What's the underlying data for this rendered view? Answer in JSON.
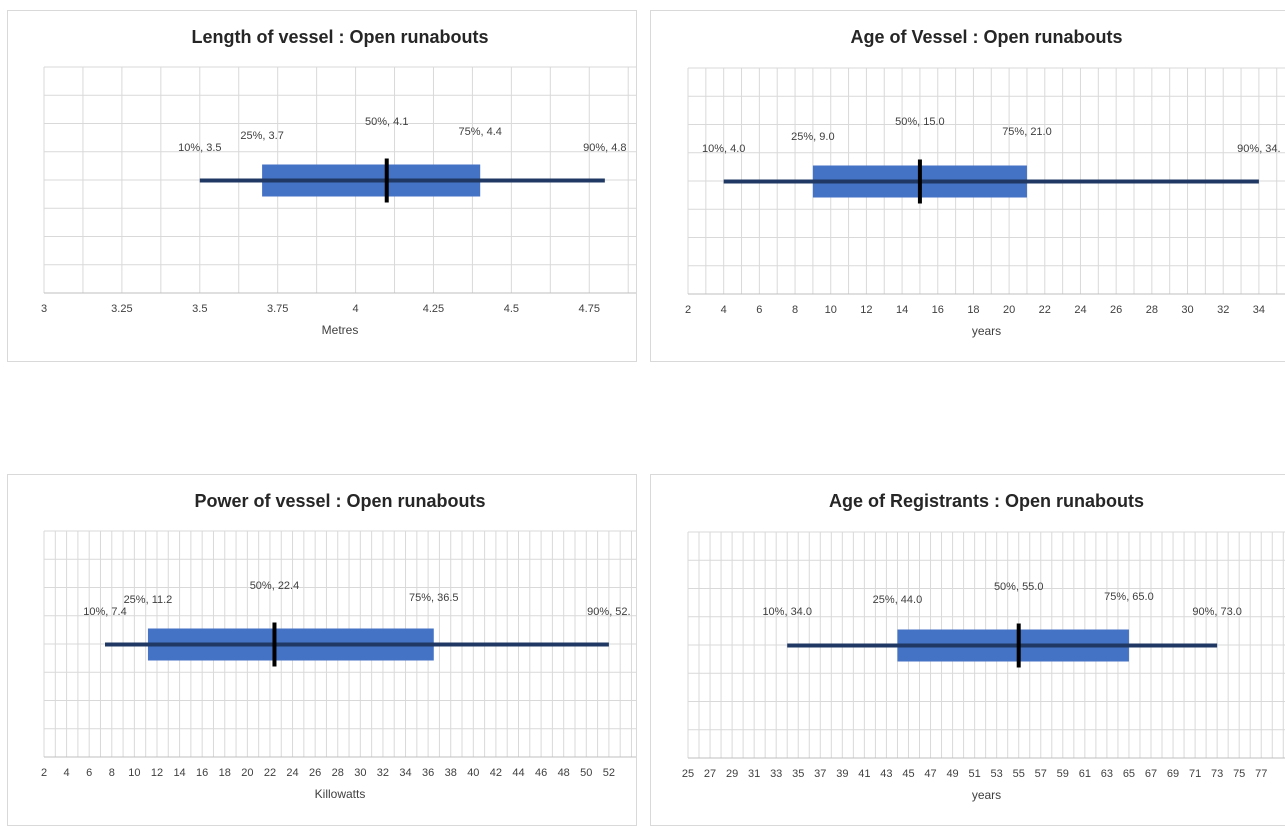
{
  "chart_data": [
    {
      "type": "box",
      "title": "Length of vessel  : Open runabouts",
      "xlabel": "Metres",
      "xlim": [
        3,
        4.8
      ],
      "xticks": [
        3,
        3.25,
        3.5,
        3.75,
        4,
        4.25,
        4.5,
        4.75
      ],
      "xtick_labels": [
        "3",
        "3.25",
        "3.5",
        "3.75",
        "4",
        "4.25",
        "4.5",
        "4.75"
      ],
      "grid": true,
      "percentiles": [
        {
          "p": "10%",
          "value": 3.5,
          "label": "10%, 3.5"
        },
        {
          "p": "25%",
          "value": 3.7,
          "label": "25%, 3.7"
        },
        {
          "p": "50%",
          "value": 4.1,
          "label": "50%, 4.1"
        },
        {
          "p": "75%",
          "value": 4.4,
          "label": "75%, 4.4"
        },
        {
          "p": "90%",
          "value": 4.8,
          "label": "90%, 4.8"
        }
      ]
    },
    {
      "type": "box",
      "title": "Age of Vessel  : Open runabouts",
      "xlabel": "years",
      "xlim": [
        2,
        34
      ],
      "xticks": [
        2,
        4,
        6,
        8,
        10,
        12,
        14,
        16,
        18,
        20,
        22,
        24,
        26,
        28,
        30,
        32,
        34
      ],
      "xtick_labels": [
        "2",
        "4",
        "6",
        "8",
        "10",
        "12",
        "14",
        "16",
        "18",
        "20",
        "22",
        "24",
        "26",
        "28",
        "30",
        "32",
        "34"
      ],
      "grid": true,
      "percentiles": [
        {
          "p": "10%",
          "value": 4.0,
          "label": "10%, 4.0"
        },
        {
          "p": "25%",
          "value": 9.0,
          "label": "25%, 9.0"
        },
        {
          "p": "50%",
          "value": 15.0,
          "label": "50%, 15.0"
        },
        {
          "p": "75%",
          "value": 21.0,
          "label": "75%, 21.0"
        },
        {
          "p": "90%",
          "value": 34,
          "label": "90%, 34."
        }
      ]
    },
    {
      "type": "box",
      "title": "Power of vessel   : Open runabouts",
      "xlabel": "Killowatts",
      "xlim": [
        2,
        52
      ],
      "xticks": [
        2,
        4,
        6,
        8,
        10,
        12,
        14,
        16,
        18,
        20,
        22,
        24,
        26,
        28,
        30,
        32,
        34,
        36,
        38,
        40,
        42,
        44,
        46,
        48,
        50,
        52
      ],
      "xtick_labels": [
        "2",
        "4",
        "6",
        "8",
        "10",
        "12",
        "14",
        "16",
        "18",
        "20",
        "22",
        "24",
        "26",
        "28",
        "30",
        "32",
        "34",
        "36",
        "38",
        "40",
        "42",
        "44",
        "46",
        "48",
        "50",
        "52"
      ],
      "grid": true,
      "percentiles": [
        {
          "p": "10%",
          "value": 7.4,
          "label": "10%, 7.4"
        },
        {
          "p": "25%",
          "value": 11.2,
          "label": "25%, 11.2"
        },
        {
          "p": "50%",
          "value": 22.4,
          "label": "50%, 22.4"
        },
        {
          "p": "75%",
          "value": 36.5,
          "label": "75%, 36.5"
        },
        {
          "p": "90%",
          "value": 52,
          "label": "90%, 52."
        }
      ]
    },
    {
      "type": "box",
      "title": "Age of Registrants  : Open runabouts",
      "xlabel": "years",
      "xlim": [
        25,
        77
      ],
      "xticks": [
        25,
        27,
        29,
        31,
        33,
        35,
        37,
        39,
        41,
        43,
        45,
        47,
        49,
        51,
        53,
        55,
        57,
        59,
        61,
        63,
        65,
        67,
        69,
        71,
        73,
        75,
        77
      ],
      "xtick_labels": [
        "25",
        "27",
        "29",
        "31",
        "33",
        "35",
        "37",
        "39",
        "41",
        "43",
        "45",
        "47",
        "49",
        "51",
        "53",
        "55",
        "57",
        "59",
        "61",
        "63",
        "65",
        "67",
        "69",
        "71",
        "73",
        "75",
        "77"
      ],
      "grid": true,
      "percentiles": [
        {
          "p": "10%",
          "value": 34.0,
          "label": "10%, 34.0"
        },
        {
          "p": "25%",
          "value": 44.0,
          "label": "25%, 44.0"
        },
        {
          "p": "50%",
          "value": 55.0,
          "label": "50%, 55.0"
        },
        {
          "p": "75%",
          "value": 65.0,
          "label": "75%, 65.0"
        },
        {
          "p": "90%",
          "value": 73.0,
          "label": "90%, 73.0"
        }
      ]
    }
  ],
  "colors": {
    "box_fill": "#4472c4",
    "whisker": "#1f3864",
    "median": "#000000",
    "grid": "#d9d9d9",
    "axis": "#bfbfbf",
    "text": "#404040",
    "title": "#262626"
  }
}
